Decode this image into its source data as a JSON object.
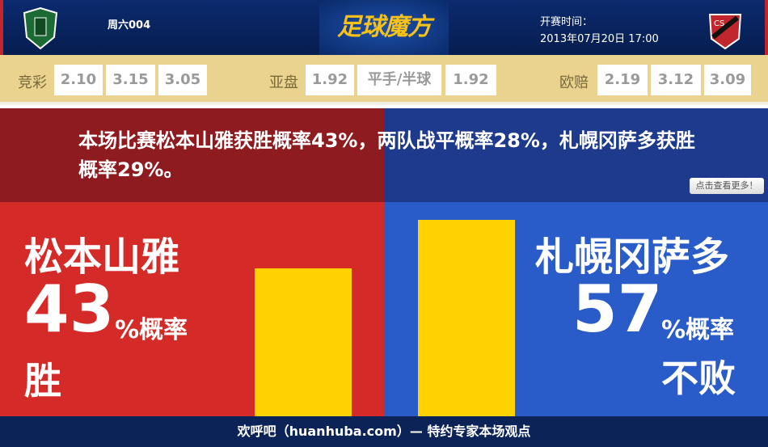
{
  "header": {
    "match_no": "周六004",
    "brand": "足球魔方",
    "kickoff_label": "开赛时间：",
    "kickoff_time": "2013年07月20日 17:00",
    "home_crest": "matsumoto-yamaga-crest",
    "away_crest": "consadole-sapporo-crest"
  },
  "odds": {
    "jingcai": {
      "label": "竞彩",
      "values": [
        "2.10",
        "3.15",
        "3.05"
      ]
    },
    "asian": {
      "label": "亚盘",
      "home": "1.92",
      "line": "平手/半球",
      "away": "1.92"
    },
    "euro": {
      "label": "欧赔",
      "values": [
        "2.19",
        "3.12",
        "3.09"
      ]
    }
  },
  "summary": {
    "text": "本场比赛松本山雅获胜概率43%，两队战平概率28%，札幌冈萨多获胜概率29%。",
    "more_button": "点击查看更多！"
  },
  "home": {
    "name": "松本山雅",
    "percent": "43",
    "unit": "%概率",
    "outcome": "胜",
    "value": 43
  },
  "away": {
    "name": "札幌冈萨多",
    "percent": "57",
    "unit": "%概率",
    "outcome": "不败",
    "value": 57
  },
  "colors": {
    "home": "#d42a28",
    "away": "#2a5cc9",
    "bar": "#ffd200"
  },
  "footer": {
    "text": "欢呼吧（huanhuba.com）— 特约专家本场观点"
  }
}
